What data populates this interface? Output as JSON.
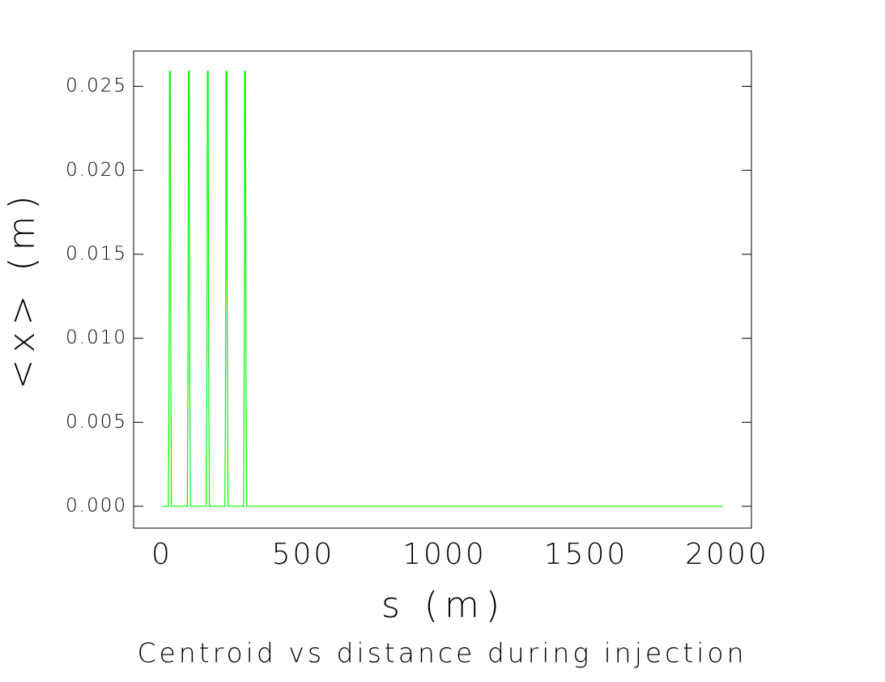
{
  "chart_data": {
    "type": "line",
    "title": "Centroid vs distance during injection",
    "xlabel": "s (m)",
    "ylabel": "<x> (m)",
    "x": [
      0,
      23,
      25,
      26,
      27,
      30,
      31,
      32,
      34,
      90,
      92,
      93,
      94,
      97,
      98,
      99,
      101,
      157,
      159,
      160,
      161,
      164,
      165,
      166,
      168,
      223,
      225,
      226,
      227,
      230,
      231,
      232,
      234,
      289,
      291,
      292,
      293,
      296,
      297,
      298,
      300,
      1986
    ],
    "series": [
      {
        "color": "#00ff00",
        "values": [
          0,
          0,
          0.0068,
          0.013,
          0.0259,
          0.0259,
          0.013,
          0.0068,
          0,
          0,
          0.0068,
          0.013,
          0.0259,
          0.0259,
          0.013,
          0.0068,
          0,
          0,
          0.0068,
          0.013,
          0.0259,
          0.0259,
          0.013,
          0.0068,
          0,
          0,
          0.0068,
          0.013,
          0.0259,
          0.0259,
          0.013,
          0.0068,
          0,
          0,
          0.0068,
          0.013,
          0.0259,
          0.0259,
          0.013,
          0.0068,
          0,
          0
        ]
      }
    ],
    "xlim": [
      -100,
      2086
    ],
    "ylim": [
      -0.0013,
      0.0271
    ],
    "xticks": [
      0,
      500,
      1000,
      1500,
      2000
    ],
    "yticks": [
      {
        "value": 0,
        "label": "0.000"
      },
      0.005,
      {
        "value": 0.01,
        "label": "0.010"
      },
      0.015,
      {
        "value": 0.02,
        "label": "0.020"
      },
      0.025
    ]
  }
}
